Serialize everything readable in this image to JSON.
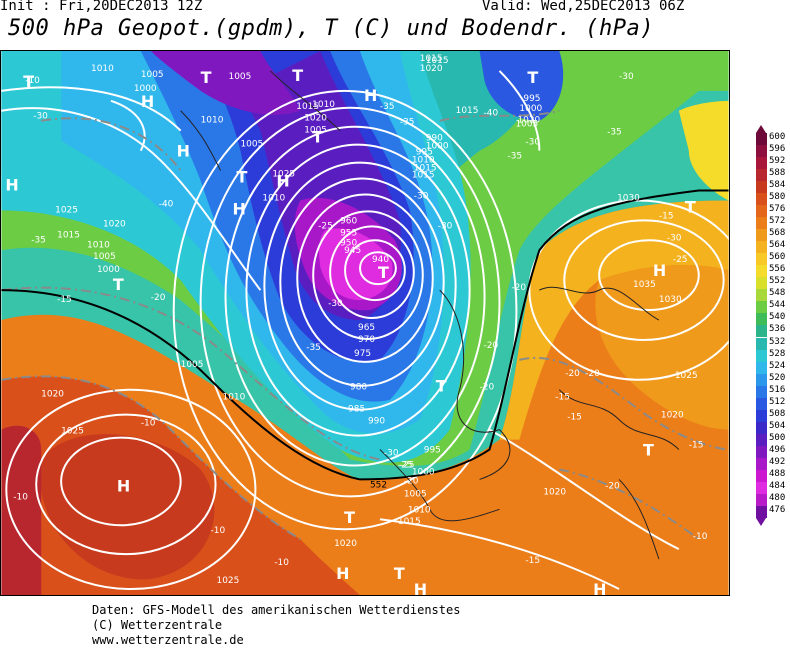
{
  "header": {
    "init": "Init : Fri,20DEC2013 12Z",
    "valid": "Valid: Wed,25DEC2013 06Z",
    "title": "500 hPa Geopot.(gpdm), T (C) und Bodendr. (hPa)"
  },
  "footer": {
    "line1": "Daten: GFS-Modell des amerikanischen Wetterdienstes",
    "line2": "(C) Wetterzentrale",
    "line3": "www.wetterzentrale.de"
  },
  "colorbar": {
    "labels": [
      "600",
      "596",
      "592",
      "588",
      "584",
      "580",
      "576",
      "572",
      "568",
      "564",
      "560",
      "556",
      "552",
      "548",
      "544",
      "540",
      "536",
      "532",
      "528",
      "524",
      "520",
      "516",
      "512",
      "508",
      "504",
      "500",
      "496",
      "492",
      "488",
      "484",
      "480",
      "476"
    ],
    "colors": [
      "#6e0a3a",
      "#8c0f3d",
      "#a8173b",
      "#b8272e",
      "#c83a1e",
      "#d9501a",
      "#e4661a",
      "#ec7e1a",
      "#f09a1c",
      "#f4b21f",
      "#f8c826",
      "#f6dc2a",
      "#d8e02c",
      "#a8d83a",
      "#6ccc44",
      "#3ebc58",
      "#2cb48a",
      "#28b8b0",
      "#2cc8d4",
      "#30b8ec",
      "#2c98ec",
      "#2a78e8",
      "#2a58e0",
      "#2c3cd8",
      "#3a28c8",
      "#5a1ec0",
      "#8018c0",
      "#a818c8",
      "#cc18d0",
      "#e02ce0",
      "#b81cc8",
      "#7010a0"
    ]
  },
  "map": {
    "pressure_labels": [
      "1005",
      "1010",
      "1005",
      "1000",
      "1010",
      "1005",
      "1015",
      "1020",
      "1010",
      "1025",
      "1005",
      "1010",
      "1015",
      "1020",
      "1025",
      "1015",
      "1010",
      "1005",
      "1000",
      "1015",
      "1020",
      "1005",
      "1010",
      "1020",
      "1025",
      "1025",
      "1020",
      "1015",
      "1010",
      "1005",
      "1000",
      "995",
      "990",
      "985",
      "980",
      "975",
      "970",
      "965",
      "960",
      "955",
      "950",
      "945",
      "940",
      "1035",
      "1030",
      "1030",
      "1025",
      "1020",
      "1015",
      "1020",
      "1020",
      "1000",
      "995",
      "990",
      "1000",
      "1005",
      "995",
      "1010",
      "1015",
      "1015",
      "965",
      "960",
      "955",
      "950",
      "970",
      "980",
      "985",
      "990",
      "995",
      "1000",
      "1005",
      "1010",
      "1015",
      "1020",
      "1025"
    ],
    "temp_labels": [
      "-30",
      "-35",
      "-40",
      "-35",
      "-30",
      "-35",
      "-40",
      "-30",
      "-35",
      "-35",
      "-30",
      "-25",
      "-30",
      "-35",
      "-20",
      "-15",
      "-20",
      "-25",
      "-30",
      "-25",
      "-20",
      "-20",
      "-20",
      "-15",
      "-10",
      "-10",
      "-10",
      "-15",
      "-15",
      "-20",
      "-10",
      "-10",
      "-15",
      "-10",
      "-15",
      "-20",
      "-20",
      "-25",
      "-30",
      "-30"
    ],
    "centers": [
      {
        "label": "H",
        "name": "high"
      },
      {
        "label": "T",
        "name": "low"
      },
      {
        "label": "H",
        "name": "high"
      },
      {
        "label": "T",
        "name": "low"
      },
      {
        "label": "H",
        "name": "high"
      },
      {
        "label": "H",
        "name": "high"
      },
      {
        "label": "T",
        "name": "low"
      },
      {
        "label": "H",
        "name": "high"
      },
      {
        "label": "T",
        "name": "low"
      },
      {
        "label": "T",
        "name": "low"
      },
      {
        "label": "H",
        "name": "high"
      },
      {
        "label": "T",
        "name": "low"
      },
      {
        "label": "T",
        "name": "low"
      },
      {
        "label": "T",
        "name": "low"
      },
      {
        "label": "H",
        "name": "high"
      },
      {
        "label": "T",
        "name": "low"
      },
      {
        "label": "H",
        "name": "high"
      },
      {
        "label": "H",
        "name": "high"
      },
      {
        "label": "T",
        "name": "low"
      },
      {
        "label": "T",
        "name": "low"
      },
      {
        "label": "T",
        "name": "low"
      },
      {
        "label": "H",
        "name": "high"
      },
      {
        "label": "T",
        "name": "low"
      },
      {
        "label": "H",
        "name": "high"
      }
    ],
    "geopot_label": "552"
  }
}
